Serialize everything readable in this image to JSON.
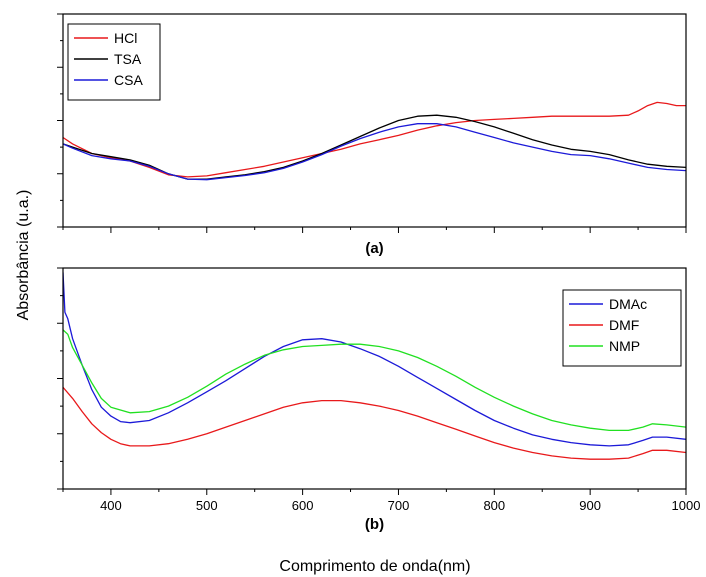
{
  "figure": {
    "ylabel": "Absorbância (u.a.)",
    "xlabel": "Comprimento de onda(nm)"
  },
  "chart_data": [
    {
      "type": "line",
      "panel_label": "(a)",
      "xlim": [
        350,
        1000
      ],
      "ylim": [
        0,
        1
      ],
      "x_ticks": [
        400,
        500,
        600,
        700,
        800,
        900,
        1000
      ],
      "show_x_ticklabels": false,
      "y_ticklabels": false,
      "grid": false,
      "legend_position": "top-left",
      "series": [
        {
          "name": "HCl",
          "color": "#e8191b",
          "points": [
            [
              350,
              0.42
            ],
            [
              360,
              0.39
            ],
            [
              380,
              0.345
            ],
            [
              400,
              0.325
            ],
            [
              420,
              0.31
            ],
            [
              440,
              0.28
            ],
            [
              460,
              0.245
            ],
            [
              480,
              0.235
            ],
            [
              500,
              0.24
            ],
            [
              520,
              0.255
            ],
            [
              540,
              0.27
            ],
            [
              560,
              0.285
            ],
            [
              580,
              0.305
            ],
            [
              600,
              0.325
            ],
            [
              620,
              0.345
            ],
            [
              640,
              0.365
            ],
            [
              660,
              0.39
            ],
            [
              680,
              0.41
            ],
            [
              700,
              0.43
            ],
            [
              720,
              0.455
            ],
            [
              740,
              0.475
            ],
            [
              760,
              0.49
            ],
            [
              780,
              0.5
            ],
            [
              800,
              0.505
            ],
            [
              820,
              0.51
            ],
            [
              840,
              0.515
            ],
            [
              860,
              0.52
            ],
            [
              880,
              0.52
            ],
            [
              900,
              0.52
            ],
            [
              920,
              0.52
            ],
            [
              940,
              0.525
            ],
            [
              950,
              0.545
            ],
            [
              960,
              0.57
            ],
            [
              970,
              0.585
            ],
            [
              980,
              0.58
            ],
            [
              990,
              0.57
            ],
            [
              1000,
              0.57
            ]
          ]
        },
        {
          "name": "TSA",
          "color": "#000000",
          "points": [
            [
              350,
              0.39
            ],
            [
              360,
              0.375
            ],
            [
              380,
              0.345
            ],
            [
              400,
              0.33
            ],
            [
              420,
              0.315
            ],
            [
              440,
              0.29
            ],
            [
              460,
              0.25
            ],
            [
              480,
              0.225
            ],
            [
              500,
              0.225
            ],
            [
              520,
              0.235
            ],
            [
              540,
              0.245
            ],
            [
              560,
              0.26
            ],
            [
              580,
              0.28
            ],
            [
              600,
              0.31
            ],
            [
              620,
              0.345
            ],
            [
              640,
              0.385
            ],
            [
              660,
              0.425
            ],
            [
              680,
              0.465
            ],
            [
              700,
              0.5
            ],
            [
              720,
              0.52
            ],
            [
              740,
              0.525
            ],
            [
              760,
              0.515
            ],
            [
              780,
              0.495
            ],
            [
              800,
              0.47
            ],
            [
              820,
              0.44
            ],
            [
              840,
              0.41
            ],
            [
              860,
              0.385
            ],
            [
              880,
              0.365
            ],
            [
              900,
              0.355
            ],
            [
              920,
              0.34
            ],
            [
              940,
              0.315
            ],
            [
              960,
              0.295
            ],
            [
              980,
              0.285
            ],
            [
              1000,
              0.28
            ]
          ]
        },
        {
          "name": "CSA",
          "color": "#1c1ad8",
          "points": [
            [
              350,
              0.39
            ],
            [
              360,
              0.37
            ],
            [
              380,
              0.335
            ],
            [
              400,
              0.32
            ],
            [
              420,
              0.31
            ],
            [
              440,
              0.285
            ],
            [
              460,
              0.25
            ],
            [
              480,
              0.225
            ],
            [
              500,
              0.222
            ],
            [
              520,
              0.232
            ],
            [
              540,
              0.242
            ],
            [
              560,
              0.255
            ],
            [
              580,
              0.275
            ],
            [
              600,
              0.305
            ],
            [
              620,
              0.34
            ],
            [
              640,
              0.38
            ],
            [
              660,
              0.415
            ],
            [
              680,
              0.445
            ],
            [
              700,
              0.47
            ],
            [
              720,
              0.485
            ],
            [
              740,
              0.485
            ],
            [
              760,
              0.47
            ],
            [
              780,
              0.445
            ],
            [
              800,
              0.42
            ],
            [
              820,
              0.395
            ],
            [
              840,
              0.375
            ],
            [
              860,
              0.355
            ],
            [
              880,
              0.34
            ],
            [
              900,
              0.335
            ],
            [
              920,
              0.32
            ],
            [
              940,
              0.3
            ],
            [
              960,
              0.28
            ],
            [
              980,
              0.27
            ],
            [
              1000,
              0.265
            ]
          ]
        }
      ]
    },
    {
      "type": "line",
      "panel_label": "(b)",
      "xlim": [
        350,
        1000
      ],
      "ylim": [
        0,
        1
      ],
      "x_ticks": [
        400,
        500,
        600,
        700,
        800,
        900,
        1000
      ],
      "show_x_ticklabels": true,
      "y_ticklabels": false,
      "grid": false,
      "legend_position": "top-right",
      "series": [
        {
          "name": "DMAc",
          "color": "#1c1ad8",
          "points": [
            [
              350,
              0.98
            ],
            [
              352,
              0.8
            ],
            [
              355,
              0.77
            ],
            [
              360,
              0.68
            ],
            [
              370,
              0.56
            ],
            [
              380,
              0.45
            ],
            [
              390,
              0.37
            ],
            [
              400,
              0.33
            ],
            [
              410,
              0.305
            ],
            [
              420,
              0.3
            ],
            [
              440,
              0.31
            ],
            [
              460,
              0.345
            ],
            [
              480,
              0.39
            ],
            [
              500,
              0.44
            ],
            [
              520,
              0.49
            ],
            [
              540,
              0.545
            ],
            [
              560,
              0.6
            ],
            [
              580,
              0.645
            ],
            [
              600,
              0.675
            ],
            [
              620,
              0.68
            ],
            [
              640,
              0.665
            ],
            [
              660,
              0.635
            ],
            [
              680,
              0.6
            ],
            [
              700,
              0.555
            ],
            [
              720,
              0.505
            ],
            [
              740,
              0.455
            ],
            [
              760,
              0.405
            ],
            [
              780,
              0.355
            ],
            [
              800,
              0.31
            ],
            [
              820,
              0.275
            ],
            [
              840,
              0.245
            ],
            [
              860,
              0.225
            ],
            [
              880,
              0.21
            ],
            [
              900,
              0.2
            ],
            [
              920,
              0.195
            ],
            [
              940,
              0.2
            ],
            [
              955,
              0.22
            ],
            [
              965,
              0.235
            ],
            [
              980,
              0.235
            ],
            [
              1000,
              0.225
            ]
          ]
        },
        {
          "name": "DMF",
          "color": "#e8191b",
          "points": [
            [
              350,
              0.46
            ],
            [
              360,
              0.41
            ],
            [
              370,
              0.35
            ],
            [
              380,
              0.295
            ],
            [
              390,
              0.255
            ],
            [
              400,
              0.225
            ],
            [
              410,
              0.205
            ],
            [
              420,
              0.195
            ],
            [
              440,
              0.195
            ],
            [
              460,
              0.205
            ],
            [
              480,
              0.225
            ],
            [
              500,
              0.25
            ],
            [
              520,
              0.28
            ],
            [
              540,
              0.31
            ],
            [
              560,
              0.34
            ],
            [
              580,
              0.37
            ],
            [
              600,
              0.39
            ],
            [
              620,
              0.4
            ],
            [
              640,
              0.4
            ],
            [
              660,
              0.39
            ],
            [
              680,
              0.375
            ],
            [
              700,
              0.355
            ],
            [
              720,
              0.33
            ],
            [
              740,
              0.3
            ],
            [
              760,
              0.27
            ],
            [
              780,
              0.24
            ],
            [
              800,
              0.21
            ],
            [
              820,
              0.185
            ],
            [
              840,
              0.165
            ],
            [
              860,
              0.15
            ],
            [
              880,
              0.14
            ],
            [
              900,
              0.135
            ],
            [
              920,
              0.135
            ],
            [
              940,
              0.14
            ],
            [
              955,
              0.16
            ],
            [
              965,
              0.175
            ],
            [
              980,
              0.175
            ],
            [
              1000,
              0.165
            ]
          ]
        },
        {
          "name": "NMP",
          "color": "#21e021",
          "points": [
            [
              350,
              0.72
            ],
            [
              355,
              0.7
            ],
            [
              360,
              0.64
            ],
            [
              370,
              0.56
            ],
            [
              380,
              0.48
            ],
            [
              390,
              0.41
            ],
            [
              400,
              0.37
            ],
            [
              420,
              0.345
            ],
            [
              440,
              0.35
            ],
            [
              460,
              0.375
            ],
            [
              480,
              0.415
            ],
            [
              500,
              0.465
            ],
            [
              520,
              0.52
            ],
            [
              540,
              0.565
            ],
            [
              560,
              0.605
            ],
            [
              580,
              0.63
            ],
            [
              600,
              0.645
            ],
            [
              620,
              0.65
            ],
            [
              640,
              0.655
            ],
            [
              660,
              0.655
            ],
            [
              680,
              0.645
            ],
            [
              700,
              0.625
            ],
            [
              720,
              0.595
            ],
            [
              740,
              0.555
            ],
            [
              760,
              0.51
            ],
            [
              780,
              0.46
            ],
            [
              800,
              0.415
            ],
            [
              820,
              0.375
            ],
            [
              840,
              0.34
            ],
            [
              860,
              0.31
            ],
            [
              880,
              0.29
            ],
            [
              900,
              0.275
            ],
            [
              920,
              0.265
            ],
            [
              940,
              0.265
            ],
            [
              955,
              0.28
            ],
            [
              965,
              0.295
            ],
            [
              980,
              0.29
            ],
            [
              1000,
              0.28
            ]
          ]
        }
      ]
    }
  ]
}
